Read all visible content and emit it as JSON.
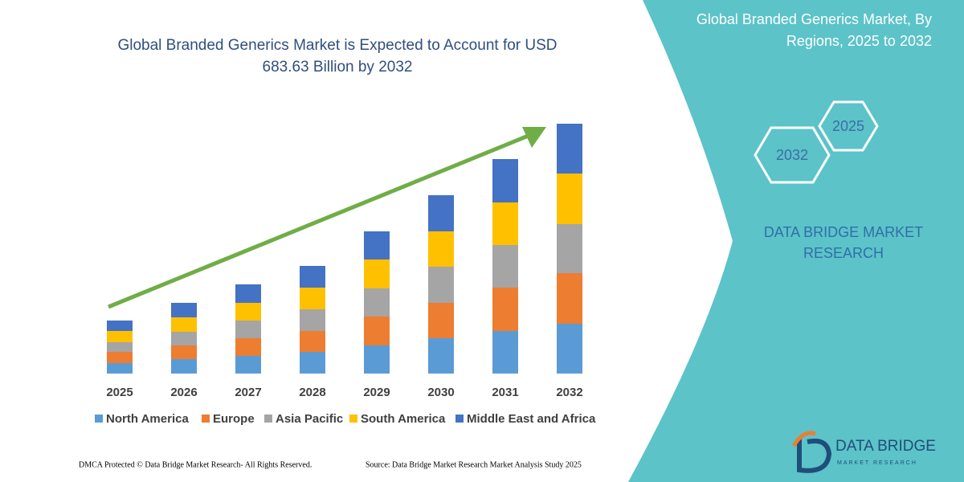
{
  "chart_data": {
    "type": "stacked_bar",
    "title": [
      "Global Branded Generics Market is Expected to Account for USD",
      "683.63 Billion by 2032"
    ],
    "categories": [
      "2025",
      "2026",
      "2027",
      "2028",
      "2029",
      "2030",
      "2031",
      "2032"
    ],
    "series": [
      {
        "name": "North America",
        "color": "#5b9bd5",
        "values": [
          13,
          18,
          22,
          27,
          35,
          44,
          53,
          62
        ]
      },
      {
        "name": "Europe",
        "color": "#ed7d31",
        "values": [
          14,
          17,
          22,
          26,
          36,
          44,
          54,
          63
        ]
      },
      {
        "name": "Asia Pacific",
        "color": "#a5a5a5",
        "values": [
          12,
          17,
          22,
          27,
          35,
          45,
          53,
          61
        ]
      },
      {
        "name": "South America",
        "color": "#ffc000",
        "values": [
          14,
          18,
          22,
          27,
          36,
          44,
          53,
          63
        ]
      },
      {
        "name": "Middle East and Africa",
        "color": "#4472c4",
        "values": [
          13,
          18,
          23,
          27,
          35,
          45,
          54,
          62
        ]
      }
    ],
    "ylim": [
      0,
      320
    ],
    "legend": "bottom"
  },
  "panel": {
    "title": [
      "Global Branded Generics Market, By",
      "Regions, 2025 to 2032"
    ],
    "hex_labels": [
      "2025",
      "2032"
    ],
    "brand": [
      "DATA BRIDGE MARKET",
      "RESEARCH"
    ]
  },
  "logo": {
    "name": "DATA BRIDGE",
    "tagline": "MARKET RESEARCH"
  },
  "footer": {
    "left": "DMCA Protected © Data Bridge Market Research-  All Rights Reserved.",
    "right": "Source: Data Bridge Market Research  Market Analysis Study 2025"
  }
}
